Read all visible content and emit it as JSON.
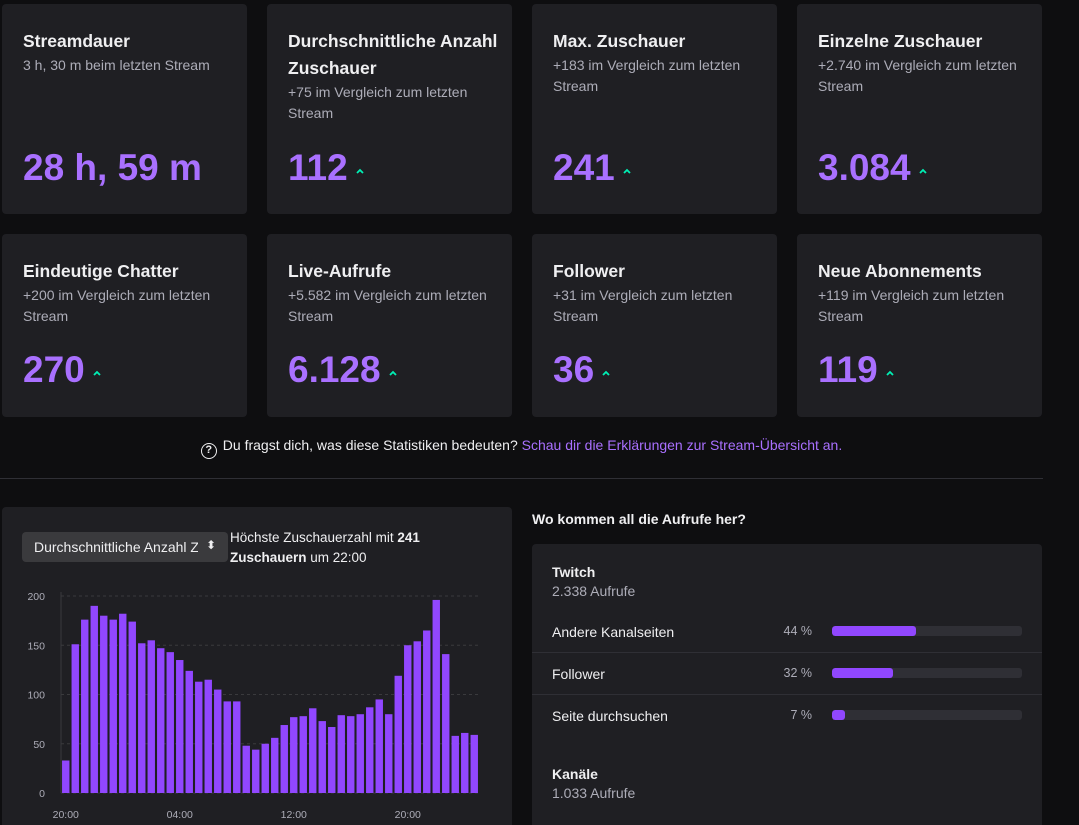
{
  "stats": [
    {
      "title": "Streamdauer",
      "sub": "3 h, 30 m beim letzten Stream",
      "value": "28 h, 59 m",
      "up": false
    },
    {
      "title": "Durchschnittliche Anzahl Zuschauer",
      "sub": "+75 im Vergleich zum letzten Stream",
      "value": "112",
      "up": true
    },
    {
      "title": "Max. Zuschauer",
      "sub": "+183 im Vergleich zum letzten Stream",
      "value": "241",
      "up": true
    },
    {
      "title": "Einzelne Zuschauer",
      "sub": "+2.740 im Vergleich zum letzten Stream",
      "value": "3.084",
      "up": true
    },
    {
      "title": "Eindeutige Chatter",
      "sub": "+200 im Vergleich zum letzten Stream",
      "value": "270",
      "up": true
    },
    {
      "title": "Live-Aufrufe",
      "sub": "+5.582 im Vergleich zum letzten Stream",
      "value": "6.128",
      "up": true
    },
    {
      "title": "Follower",
      "sub": "+31 im Vergleich zum letzten Stream",
      "value": "36",
      "up": true
    },
    {
      "title": "Neue Abonnements",
      "sub": "+119 im Vergleich zum letzten Stream",
      "value": "119",
      "up": true
    }
  ],
  "help": {
    "icon": "question-circle-icon",
    "text": "Du fragst dich, was diese Statistiken bedeuten?",
    "link": "Schau dir die Erklärungen zur Stream-Übersicht an."
  },
  "chart_panel": {
    "select_value": "Durchschnittliche Anzahl Z",
    "peak_prefix": "Höchste Zuschauerzahl mit ",
    "peak_count": "241",
    "peak_unit": "Zuschauern",
    "peak_suffix": " um 22:00"
  },
  "chart_data": {
    "type": "bar",
    "y_ticks": [
      0,
      50,
      100,
      150,
      200
    ],
    "x_tick_labels": [
      "20:00",
      "04:00",
      "12:00",
      "20:00"
    ],
    "x_tick_index": [
      0,
      12,
      24,
      36
    ],
    "ylim": [
      0,
      200
    ],
    "grid": true,
    "color": "#9147ff",
    "values": [
      33,
      151,
      176,
      190,
      180,
      176,
      182,
      174,
      152,
      155,
      147,
      143,
      135,
      124,
      113,
      115,
      105,
      93,
      93,
      48,
      44,
      50,
      56,
      69,
      77,
      78,
      86,
      73,
      67,
      79,
      78,
      80,
      87,
      95,
      80,
      119,
      150,
      154,
      165,
      196,
      141,
      58,
      61,
      59
    ]
  },
  "sources": {
    "title": "Wo kommen all die Aufrufe her?",
    "groups": [
      {
        "head": "Twitch",
        "count": "2.338 Aufrufe",
        "rows": [
          {
            "label": "Andere Kanalseiten",
            "pct_label": "44 %",
            "pct": 44
          },
          {
            "label": "Follower",
            "pct_label": "32 %",
            "pct": 32
          },
          {
            "label": "Seite durchsuchen",
            "pct_label": "7 %",
            "pct": 7
          }
        ]
      },
      {
        "head": "Kanäle",
        "count": "1.033 Aufrufe",
        "rows": []
      }
    ]
  }
}
